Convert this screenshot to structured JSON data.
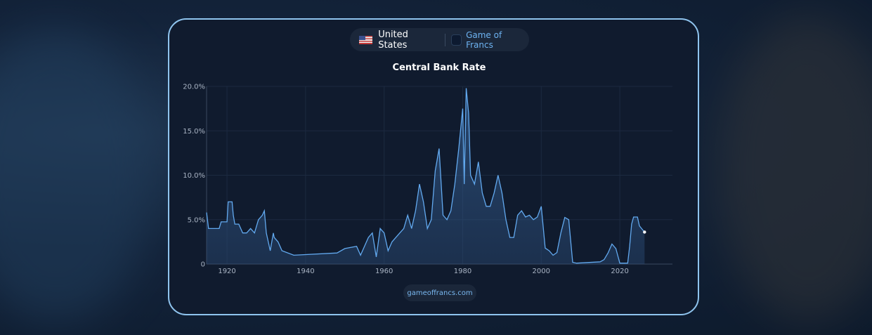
{
  "header": {
    "country": "United States",
    "brand": "Game of Francs"
  },
  "chart_data": {
    "type": "area",
    "title": "Central Bank Rate",
    "color": "#62a9ef",
    "grid": true,
    "xlim": [
      1914.8,
      2033.4
    ],
    "xticks": [
      1920,
      1940,
      1960,
      1980,
      2000,
      2020
    ],
    "ylim": [
      0,
      20
    ],
    "yticks": [
      0,
      {
        "value": 5,
        "label": "5.0%"
      },
      {
        "value": 10,
        "label": "10.0%"
      },
      {
        "value": 15,
        "label": "15.0%"
      },
      {
        "value": 20,
        "label": "20.0%"
      }
    ],
    "series": [
      {
        "name": "Central Bank Rate",
        "x": [
          1914.8,
          1915.3,
          1918,
          1918.5,
          1920,
          1920.3,
          1921.3,
          1921.6,
          1922,
          1923,
          1924,
          1925,
          1926,
          1927,
          1928,
          1929,
          1929.5,
          1930,
          1931,
          1931.8,
          1932,
          1933,
          1933.5,
          1934,
          1937,
          1948,
          1950,
          1953,
          1954,
          1955,
          1956,
          1957,
          1958,
          1959,
          1960,
          1961,
          1962,
          1963,
          1964,
          1965,
          1966,
          1967,
          1968,
          1969,
          1970,
          1971,
          1972,
          1973,
          1974,
          1975,
          1976,
          1977,
          1978,
          1979,
          1980,
          1980.4,
          1980.9,
          1981.5,
          1982,
          1983,
          1984,
          1985,
          1986,
          1987,
          1988,
          1989,
          1990,
          1991,
          1992,
          1993,
          1994,
          1995,
          1996,
          1997,
          1998,
          1999,
          2000,
          2001,
          2002,
          2003,
          2004,
          2005,
          2006,
          2007,
          2008,
          2009,
          2015,
          2016,
          2017,
          2018,
          2019,
          2020,
          2022,
          2022.5,
          2023,
          2023.5,
          2024.5,
          2025,
          2026.3
        ],
        "values": [
          5.8,
          4.0,
          4.0,
          4.75,
          4.75,
          7.0,
          7.0,
          5.5,
          4.5,
          4.5,
          3.5,
          3.5,
          4.0,
          3.5,
          5.0,
          5.5,
          6.0,
          3.5,
          1.5,
          3.5,
          3.0,
          2.5,
          2.0,
          1.5,
          1.0,
          1.25,
          1.75,
          2.0,
          1.0,
          2.0,
          3.0,
          3.5,
          0.8,
          4.0,
          3.5,
          1.5,
          2.5,
          3.0,
          3.5,
          4.0,
          5.5,
          4.0,
          6.0,
          9.0,
          7.0,
          4.0,
          5.0,
          10.5,
          13.0,
          5.5,
          5.0,
          6.0,
          9.0,
          13.0,
          17.5,
          9.0,
          19.8,
          17.0,
          10.0,
          9.0,
          11.5,
          8.0,
          6.5,
          6.5,
          8.0,
          10.0,
          8.0,
          5.0,
          3.0,
          3.0,
          5.5,
          6.0,
          5.3,
          5.5,
          5.0,
          5.3,
          6.5,
          1.8,
          1.5,
          1.0,
          1.3,
          3.5,
          5.25,
          5.0,
          0.2,
          0.1,
          0.25,
          0.5,
          1.25,
          2.25,
          1.75,
          0.1,
          0.1,
          2.0,
          4.5,
          5.3,
          5.3,
          4.3,
          3.6
        ]
      }
    ]
  },
  "footer": "gameoffrancs.com"
}
